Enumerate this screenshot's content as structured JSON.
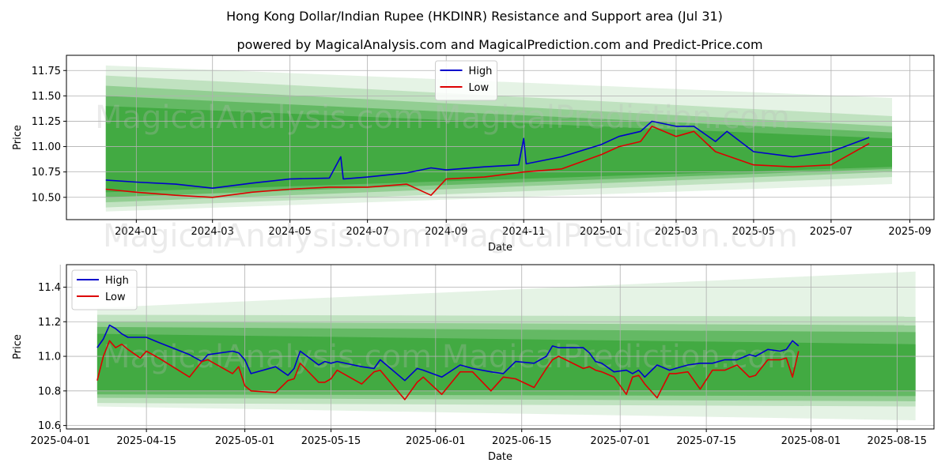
{
  "title": "Hong Kong Dollar/Indian Rupee (HKDINR) Resistance and Support area (Jul 31)",
  "subtitle": "powered by MagicalAnalysis.com and MagicalPrediction.com and Predict-Price.com",
  "watermark": "MagicalAnalysis.com    MagicalPrediction.com",
  "colors": {
    "high": "#0000cc",
    "low": "#dd0000",
    "band": "#2ca02c"
  },
  "chart_data": [
    {
      "type": "line",
      "xlabel": "Date",
      "ylabel": "Price",
      "ylim": [
        10.28,
        11.9
      ],
      "xlim": [
        "2023-11-07",
        "2025-09-20"
      ],
      "x_ticks": [
        "2024-01",
        "2024-03",
        "2024-05",
        "2024-07",
        "2024-09",
        "2024-11",
        "2025-01",
        "2025-03",
        "2025-05",
        "2025-07",
        "2025-09"
      ],
      "y_ticks": [
        "10.50",
        "10.75",
        "11.00",
        "11.25",
        "11.50",
        "11.75"
      ],
      "grid": true,
      "legend": {
        "position": "top-center",
        "entries": [
          "High",
          "Low"
        ]
      },
      "bands": {
        "x_start": "2023-12-08",
        "x_end": "2025-08-18",
        "start": [
          [
            10.36,
            11.8
          ],
          [
            10.4,
            11.7
          ],
          [
            10.45,
            11.6
          ],
          [
            10.5,
            11.5
          ],
          [
            10.55,
            11.4
          ]
        ],
        "end": [
          [
            10.63,
            11.48
          ],
          [
            10.7,
            11.3
          ],
          [
            10.75,
            11.2
          ],
          [
            10.78,
            11.14
          ],
          [
            10.8,
            11.08
          ]
        ]
      },
      "series": [
        {
          "name": "High",
          "x": [
            "2023-12-08",
            "2024-01-01",
            "2024-02-01",
            "2024-03-01",
            "2024-04-01",
            "2024-05-01",
            "2024-06-01",
            "2024-06-10",
            "2024-06-12",
            "2024-07-01",
            "2024-08-01",
            "2024-08-20",
            "2024-09-01",
            "2024-10-01",
            "2024-10-28",
            "2024-11-01",
            "2024-11-03",
            "2024-12-01",
            "2025-01-01",
            "2025-01-15",
            "2025-02-01",
            "2025-02-10",
            "2025-03-01",
            "2025-03-15",
            "2025-04-01",
            "2025-04-10",
            "2025-05-01",
            "2025-06-01",
            "2025-07-01",
            "2025-07-31"
          ],
          "y": [
            10.67,
            10.65,
            10.63,
            10.59,
            10.64,
            10.68,
            10.69,
            10.9,
            10.68,
            10.7,
            10.74,
            10.79,
            10.77,
            10.8,
            10.82,
            11.08,
            10.83,
            10.9,
            11.02,
            11.1,
            11.15,
            11.25,
            11.2,
            11.2,
            11.05,
            11.15,
            10.95,
            10.9,
            10.95,
            11.09
          ]
        },
        {
          "name": "Low",
          "x": [
            "2023-12-08",
            "2024-01-01",
            "2024-02-01",
            "2024-03-01",
            "2024-04-01",
            "2024-05-01",
            "2024-06-01",
            "2024-07-01",
            "2024-08-01",
            "2024-08-20",
            "2024-09-01",
            "2024-10-01",
            "2024-11-01",
            "2024-12-01",
            "2025-01-01",
            "2025-01-15",
            "2025-02-01",
            "2025-02-10",
            "2025-03-01",
            "2025-03-15",
            "2025-04-01",
            "2025-05-01",
            "2025-06-01",
            "2025-07-01",
            "2025-07-31"
          ],
          "y": [
            10.58,
            10.55,
            10.52,
            10.5,
            10.55,
            10.58,
            10.6,
            10.6,
            10.63,
            10.52,
            10.68,
            10.7,
            10.75,
            10.78,
            10.92,
            11.0,
            11.05,
            11.2,
            11.1,
            11.15,
            10.95,
            10.82,
            10.8,
            10.82,
            11.03
          ]
        }
      ]
    },
    {
      "type": "line",
      "xlabel": "Date",
      "ylabel": "Price",
      "ylim": [
        10.58,
        11.53
      ],
      "xlim": [
        "2025-04-02",
        "2025-08-21"
      ],
      "x_ticks": [
        "2025-04-01",
        "2025-04-15",
        "2025-05-01",
        "2025-05-15",
        "2025-06-01",
        "2025-06-15",
        "2025-07-01",
        "2025-07-15",
        "2025-08-01",
        "2025-08-15"
      ],
      "y_ticks": [
        "10.6",
        "10.8",
        "11.0",
        "11.2",
        "11.4"
      ],
      "grid": true,
      "legend": {
        "position": "top-left",
        "entries": [
          "High",
          "Low"
        ]
      },
      "bands": {
        "x_start": "2025-04-07",
        "x_end": "2025-08-18",
        "start": [
          [
            10.71,
            11.28
          ],
          [
            10.73,
            11.24
          ],
          [
            10.76,
            11.2
          ],
          [
            10.78,
            11.17
          ],
          [
            10.8,
            11.13
          ]
        ],
        "end": [
          [
            10.63,
            11.49
          ],
          [
            10.71,
            11.23
          ],
          [
            10.74,
            11.18
          ],
          [
            10.77,
            11.14
          ],
          [
            10.8,
            11.07
          ]
        ]
      },
      "series": [
        {
          "name": "High",
          "x": [
            "2025-04-07",
            "2025-04-08",
            "2025-04-09",
            "2025-04-10",
            "2025-04-11",
            "2025-04-12",
            "2025-04-14",
            "2025-04-15",
            "2025-04-17",
            "2025-04-22",
            "2025-04-24",
            "2025-04-25",
            "2025-04-29",
            "2025-04-30",
            "2025-05-01",
            "2025-05-02",
            "2025-05-06",
            "2025-05-08",
            "2025-05-09",
            "2025-05-10",
            "2025-05-13",
            "2025-05-14",
            "2025-05-15",
            "2025-05-16",
            "2025-05-20",
            "2025-05-22",
            "2025-05-23",
            "2025-05-27",
            "2025-05-29",
            "2025-05-30",
            "2025-06-02",
            "2025-06-05",
            "2025-06-07",
            "2025-06-10",
            "2025-06-12",
            "2025-06-14",
            "2025-06-17",
            "2025-06-19",
            "2025-06-20",
            "2025-06-21",
            "2025-06-25",
            "2025-06-26",
            "2025-06-27",
            "2025-06-28",
            "2025-06-30",
            "2025-07-02",
            "2025-07-03",
            "2025-07-04",
            "2025-07-05",
            "2025-07-07",
            "2025-07-09",
            "2025-07-10",
            "2025-07-12",
            "2025-07-14",
            "2025-07-16",
            "2025-07-18",
            "2025-07-20",
            "2025-07-22",
            "2025-07-23",
            "2025-07-25",
            "2025-07-27",
            "2025-07-28",
            "2025-07-29",
            "2025-07-30"
          ],
          "y": [
            11.05,
            11.1,
            11.18,
            11.16,
            11.13,
            11.11,
            11.11,
            11.11,
            11.08,
            11.01,
            10.97,
            11.01,
            11.03,
            11.02,
            10.98,
            10.9,
            10.94,
            10.89,
            10.93,
            11.03,
            10.95,
            10.97,
            10.96,
            10.97,
            10.94,
            10.93,
            10.98,
            10.86,
            10.93,
            10.92,
            10.88,
            10.95,
            10.93,
            10.91,
            10.9,
            10.97,
            10.96,
            11.0,
            11.06,
            11.05,
            11.05,
            11.02,
            10.97,
            10.96,
            10.91,
            10.92,
            10.9,
            10.92,
            10.88,
            10.95,
            10.92,
            10.93,
            10.95,
            10.96,
            10.96,
            10.98,
            10.98,
            11.01,
            11.0,
            11.04,
            11.03,
            11.04,
            11.09,
            11.06
          ]
        },
        {
          "name": "Low",
          "x": [
            "2025-04-07",
            "2025-04-08",
            "2025-04-09",
            "2025-04-10",
            "2025-04-11",
            "2025-04-12",
            "2025-04-14",
            "2025-04-15",
            "2025-04-17",
            "2025-04-22",
            "2025-04-24",
            "2025-04-25",
            "2025-04-29",
            "2025-04-30",
            "2025-05-01",
            "2025-05-02",
            "2025-05-06",
            "2025-05-08",
            "2025-05-09",
            "2025-05-10",
            "2025-05-13",
            "2025-05-14",
            "2025-05-15",
            "2025-05-16",
            "2025-05-20",
            "2025-05-22",
            "2025-05-23",
            "2025-05-27",
            "2025-05-29",
            "2025-05-30",
            "2025-06-02",
            "2025-06-05",
            "2025-06-07",
            "2025-06-10",
            "2025-06-12",
            "2025-06-14",
            "2025-06-17",
            "2025-06-19",
            "2025-06-20",
            "2025-06-21",
            "2025-06-25",
            "2025-06-26",
            "2025-06-27",
            "2025-06-28",
            "2025-06-30",
            "2025-07-02",
            "2025-07-03",
            "2025-07-04",
            "2025-07-05",
            "2025-07-07",
            "2025-07-09",
            "2025-07-10",
            "2025-07-12",
            "2025-07-14",
            "2025-07-16",
            "2025-07-18",
            "2025-07-20",
            "2025-07-22",
            "2025-07-23",
            "2025-07-25",
            "2025-07-27",
            "2025-07-28",
            "2025-07-29",
            "2025-07-30"
          ],
          "y": [
            10.86,
            11.0,
            11.09,
            11.05,
            11.07,
            11.04,
            10.99,
            11.03,
            10.99,
            10.88,
            10.97,
            10.98,
            10.9,
            10.94,
            10.83,
            10.8,
            10.79,
            10.86,
            10.87,
            10.96,
            10.85,
            10.85,
            10.87,
            10.92,
            10.84,
            10.91,
            10.92,
            10.75,
            10.85,
            10.88,
            10.78,
            10.91,
            10.91,
            10.8,
            10.88,
            10.87,
            10.82,
            10.93,
            10.98,
            11.0,
            10.93,
            10.94,
            10.92,
            10.91,
            10.88,
            10.78,
            10.88,
            10.89,
            10.84,
            10.76,
            10.9,
            10.9,
            10.91,
            10.81,
            10.92,
            10.92,
            10.95,
            10.88,
            10.89,
            10.98,
            10.98,
            10.99,
            10.88,
            11.03
          ]
        }
      ]
    }
  ]
}
